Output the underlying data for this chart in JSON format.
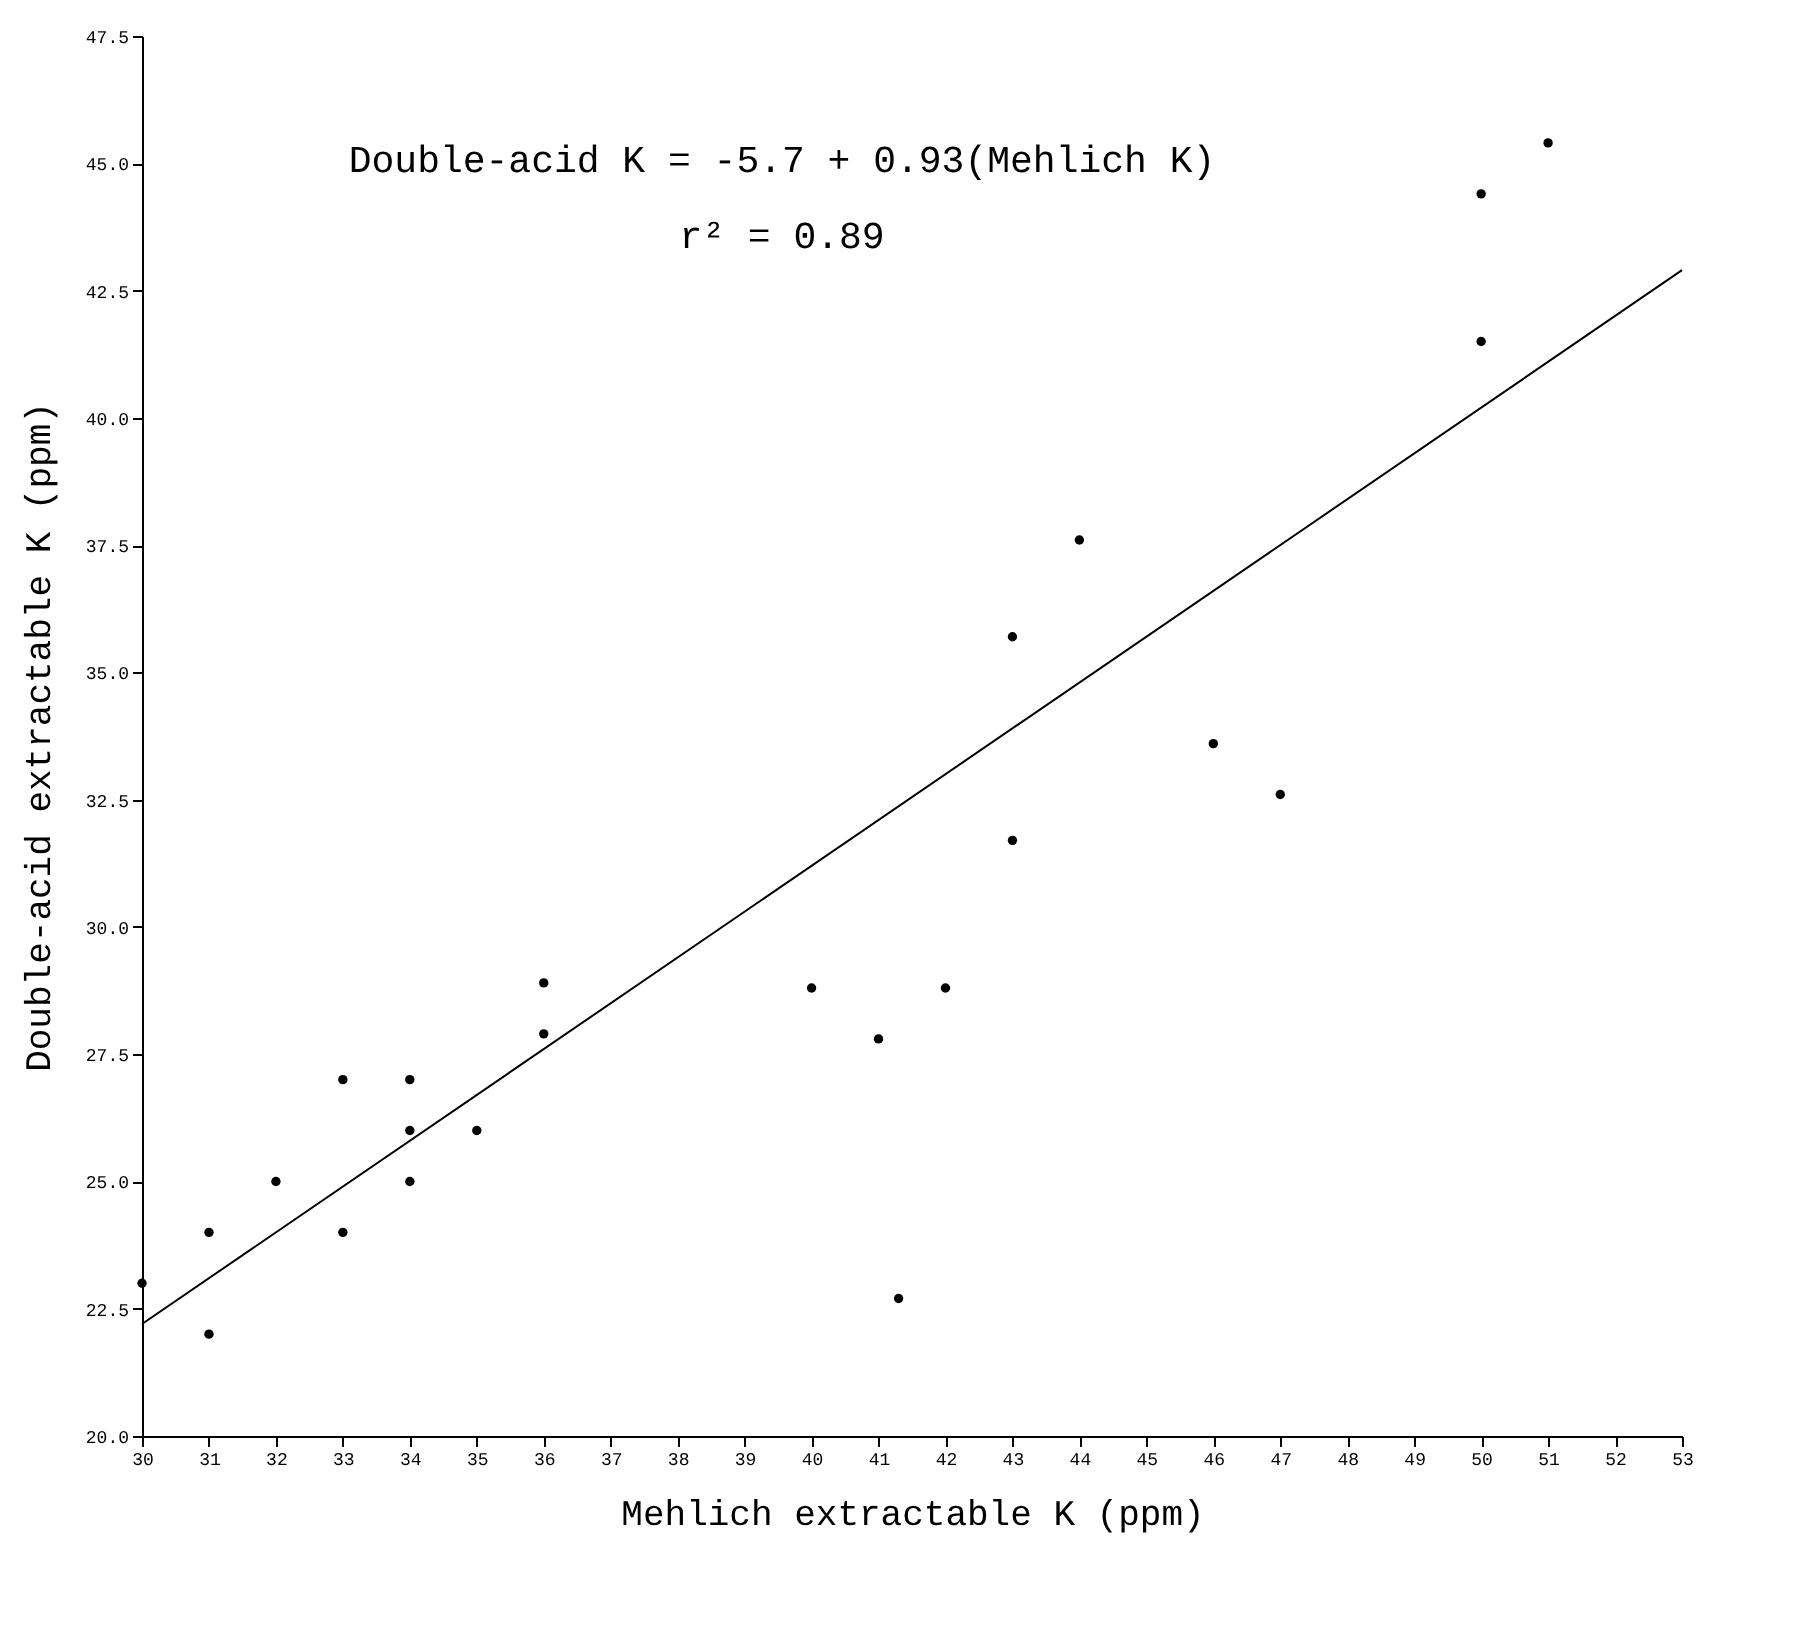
{
  "chart_data": {
    "type": "scatter",
    "xlabel": "Mehlich extractable K (ppm)",
    "ylabel": "Double-acid extractable K (ppm)",
    "annotations": [
      "Double-acid K = -5.7 + 0.93(Mehlich K)",
      "r² = 0.89"
    ],
    "series": [
      {
        "type": "scatter",
        "color": "#000000",
        "marker": "circle",
        "x": [
          30,
          31,
          31,
          32,
          33,
          33,
          34,
          34,
          34,
          35,
          36,
          36,
          40,
          41,
          41.3,
          42,
          43,
          43,
          44,
          46,
          47,
          50,
          50,
          51
        ],
        "values": [
          23.0,
          24.0,
          22.0,
          25.0,
          24.0,
          27.0,
          27.0,
          26.0,
          25.0,
          26.0,
          28.9,
          27.9,
          28.8,
          27.8,
          22.7,
          28.8,
          35.7,
          31.7,
          37.6,
          33.6,
          32.6,
          44.4,
          41.5,
          45.4
        ]
      },
      {
        "type": "line",
        "color": "#000000",
        "line_style": "solid",
        "x": [
          30,
          53
        ],
        "values": [
          22.2,
          42.9
        ]
      }
    ],
    "xlim": [
      30,
      53
    ],
    "xticks": [
      30,
      31,
      32,
      33,
      34,
      35,
      36,
      37,
      38,
      39,
      40,
      41,
      42,
      43,
      44,
      45,
      46,
      47,
      48,
      49,
      50,
      51,
      52,
      53
    ],
    "ylim": [
      20,
      47.5
    ],
    "yticks": [
      {
        "value": 20,
        "label": "20.0"
      },
      {
        "value": 22.5,
        "label": "22.5"
      },
      {
        "value": 25,
        "label": "25.0"
      },
      {
        "value": 27.5,
        "label": "27.5"
      },
      {
        "value": 30,
        "label": "30.0"
      },
      {
        "value": 32.5,
        "label": "32.5"
      },
      {
        "value": 35,
        "label": "35.0"
      },
      {
        "value": 37.5,
        "label": "37.5"
      },
      {
        "value": 40,
        "label": "40.0"
      },
      {
        "value": 42.5,
        "label": "42.5"
      },
      {
        "value": 45,
        "label": "45.0"
      },
      {
        "value": 47.5,
        "label": "47.5"
      }
    ],
    "grid": false
  }
}
